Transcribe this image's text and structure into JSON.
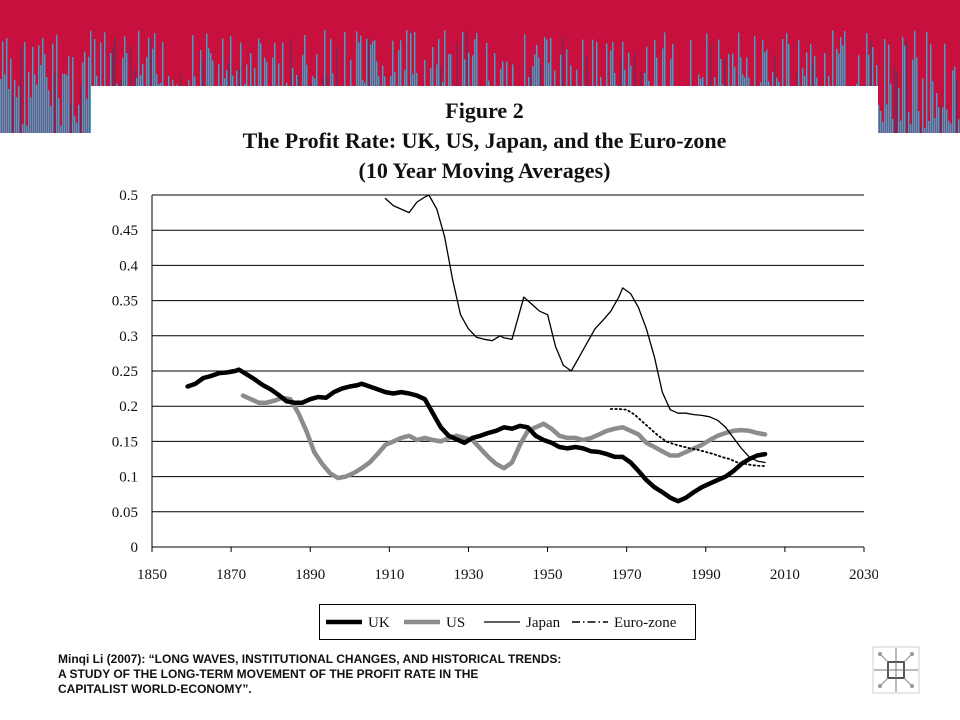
{
  "caption": {
    "line1": "Minqi Li (2007): “LONG WAVES, INSTITUTIONAL CHANGES, AND HISTORICAL TRENDS:",
    "line2": "A STUDY OF THE LONG-TERM MOVEMENT OF THE PROFIT RATE IN THE",
    "line3": "CAPITALIST WORLD-ECONOMY”."
  },
  "colors": {
    "banner_red": "#c8103e",
    "banner_blue": "#3aa5c9",
    "uk": "#000000",
    "us": "#8c8c8c",
    "japan": "#000000",
    "euro": "#000000"
  },
  "icons": {
    "logo": "network-logo-icon"
  },
  "chart_data": {
    "type": "line",
    "title": "Figure 2",
    "subtitle": "The Profit Rate: UK, US, Japan, and the Euro-zone",
    "subtitle2": "(10 Year Moving Averages)",
    "xlim": [
      1850,
      2030
    ],
    "ylim": [
      0,
      0.5
    ],
    "x_ticks": [
      "1850",
      "1870",
      "1890",
      "1910",
      "1930",
      "1950",
      "1970",
      "1990",
      "2010",
      "2030"
    ],
    "y_ticks": [
      "0",
      "0.05",
      "0.1",
      "0.15",
      "0.2",
      "0.25",
      "0.3",
      "0.35",
      "0.4",
      "0.45",
      "0.5"
    ],
    "grid": "horizontal",
    "legend_position": "bottom",
    "series": [
      {
        "name": "UK",
        "style": "thick-black",
        "x": [
          1859,
          1861,
          1863,
          1865,
          1867,
          1869,
          1871,
          1872,
          1874,
          1876,
          1878,
          1880,
          1882,
          1884,
          1886,
          1888,
          1890,
          1892,
          1894,
          1896,
          1898,
          1900,
          1902,
          1903,
          1905,
          1907,
          1909,
          1911,
          1913,
          1915,
          1917,
          1919,
          1921,
          1923,
          1925,
          1927,
          1929,
          1931,
          1933,
          1935,
          1937,
          1939,
          1941,
          1943,
          1945,
          1947,
          1949,
          1951,
          1953,
          1955,
          1957,
          1959,
          1961,
          1963,
          1965,
          1967,
          1969,
          1971,
          1973,
          1975,
          1977,
          1979,
          1981,
          1983,
          1985,
          1987,
          1989,
          1991,
          1993,
          1995,
          1997,
          1999,
          2001,
          2003,
          2005
        ],
        "y": [
          0.228,
          0.232,
          0.24,
          0.243,
          0.247,
          0.248,
          0.25,
          0.252,
          0.245,
          0.238,
          0.23,
          0.224,
          0.216,
          0.207,
          0.205,
          0.205,
          0.21,
          0.213,
          0.212,
          0.22,
          0.225,
          0.228,
          0.23,
          0.232,
          0.228,
          0.224,
          0.22,
          0.218,
          0.22,
          0.218,
          0.215,
          0.21,
          0.19,
          0.17,
          0.158,
          0.153,
          0.148,
          0.155,
          0.158,
          0.162,
          0.165,
          0.17,
          0.168,
          0.172,
          0.17,
          0.158,
          0.152,
          0.148,
          0.142,
          0.14,
          0.142,
          0.14,
          0.136,
          0.135,
          0.132,
          0.128,
          0.128,
          0.12,
          0.108,
          0.095,
          0.085,
          0.078,
          0.07,
          0.065,
          0.07,
          0.078,
          0.085,
          0.09,
          0.095,
          0.1,
          0.108,
          0.118,
          0.125,
          0.13,
          0.132
        ]
      },
      {
        "name": "US",
        "style": "thick-gray",
        "x": [
          1873,
          1875,
          1877,
          1879,
          1881,
          1883,
          1885,
          1887,
          1889,
          1891,
          1893,
          1895,
          1897,
          1899,
          1901,
          1903,
          1905,
          1907,
          1909,
          1911,
          1913,
          1915,
          1917,
          1919,
          1921,
          1923,
          1925,
          1927,
          1929,
          1931,
          1933,
          1935,
          1937,
          1939,
          1941,
          1943,
          1945,
          1947,
          1949,
          1951,
          1953,
          1955,
          1957,
          1959,
          1961,
          1963,
          1965,
          1967,
          1969,
          1971,
          1973,
          1975,
          1977,
          1979,
          1981,
          1983,
          1985,
          1987,
          1989,
          1991,
          1993,
          1995,
          1997,
          1999,
          2001,
          2003,
          2005
        ],
        "y": [
          0.215,
          0.21,
          0.205,
          0.205,
          0.208,
          0.212,
          0.21,
          0.19,
          0.165,
          0.135,
          0.118,
          0.105,
          0.098,
          0.1,
          0.105,
          0.112,
          0.12,
          0.132,
          0.145,
          0.15,
          0.155,
          0.158,
          0.152,
          0.155,
          0.152,
          0.15,
          0.155,
          0.158,
          0.155,
          0.152,
          0.14,
          0.128,
          0.118,
          0.112,
          0.12,
          0.145,
          0.165,
          0.17,
          0.175,
          0.168,
          0.158,
          0.155,
          0.155,
          0.152,
          0.155,
          0.16,
          0.165,
          0.168,
          0.17,
          0.165,
          0.16,
          0.148,
          0.142,
          0.136,
          0.13,
          0.13,
          0.135,
          0.14,
          0.145,
          0.152,
          0.158,
          0.162,
          0.165,
          0.166,
          0.165,
          0.162,
          0.16
        ]
      },
      {
        "name": "Japan",
        "style": "thin-solid",
        "x": [
          1909,
          1911,
          1913,
          1915,
          1917,
          1919,
          1920,
          1922,
          1924,
          1926,
          1928,
          1930,
          1932,
          1934,
          1936,
          1938,
          1939,
          1941,
          1943,
          1944,
          1946,
          1948,
          1950,
          1952,
          1954,
          1956,
          1958,
          1960,
          1962,
          1964,
          1966,
          1968,
          1969,
          1971,
          1973,
          1975,
          1977,
          1979,
          1981,
          1983,
          1985,
          1987,
          1989,
          1991,
          1993,
          1995,
          1997,
          1999,
          2001,
          2003,
          2005
        ],
        "y": [
          0.495,
          0.485,
          0.48,
          0.475,
          0.49,
          0.497,
          0.5,
          0.48,
          0.44,
          0.38,
          0.33,
          0.31,
          0.298,
          0.295,
          0.293,
          0.3,
          0.297,
          0.295,
          0.335,
          0.355,
          0.345,
          0.335,
          0.33,
          0.285,
          0.258,
          0.25,
          0.27,
          0.29,
          0.31,
          0.322,
          0.335,
          0.355,
          0.368,
          0.36,
          0.34,
          0.31,
          0.27,
          0.22,
          0.195,
          0.19,
          0.19,
          0.188,
          0.187,
          0.185,
          0.18,
          0.17,
          0.155,
          0.14,
          0.128,
          0.122,
          0.12
        ]
      },
      {
        "name": "Euro-zone",
        "style": "dotted",
        "x": [
          1966,
          1968,
          1970,
          1972,
          1974,
          1976,
          1978,
          1980,
          1982,
          1984,
          1986,
          1988,
          1990,
          1992,
          1994,
          1996,
          1998,
          2000,
          2002,
          2004,
          2005
        ],
        "y": [
          0.196,
          0.196,
          0.195,
          0.188,
          0.178,
          0.168,
          0.158,
          0.15,
          0.146,
          0.143,
          0.14,
          0.138,
          0.135,
          0.132,
          0.128,
          0.125,
          0.12,
          0.118,
          0.116,
          0.115,
          0.115
        ]
      }
    ]
  }
}
